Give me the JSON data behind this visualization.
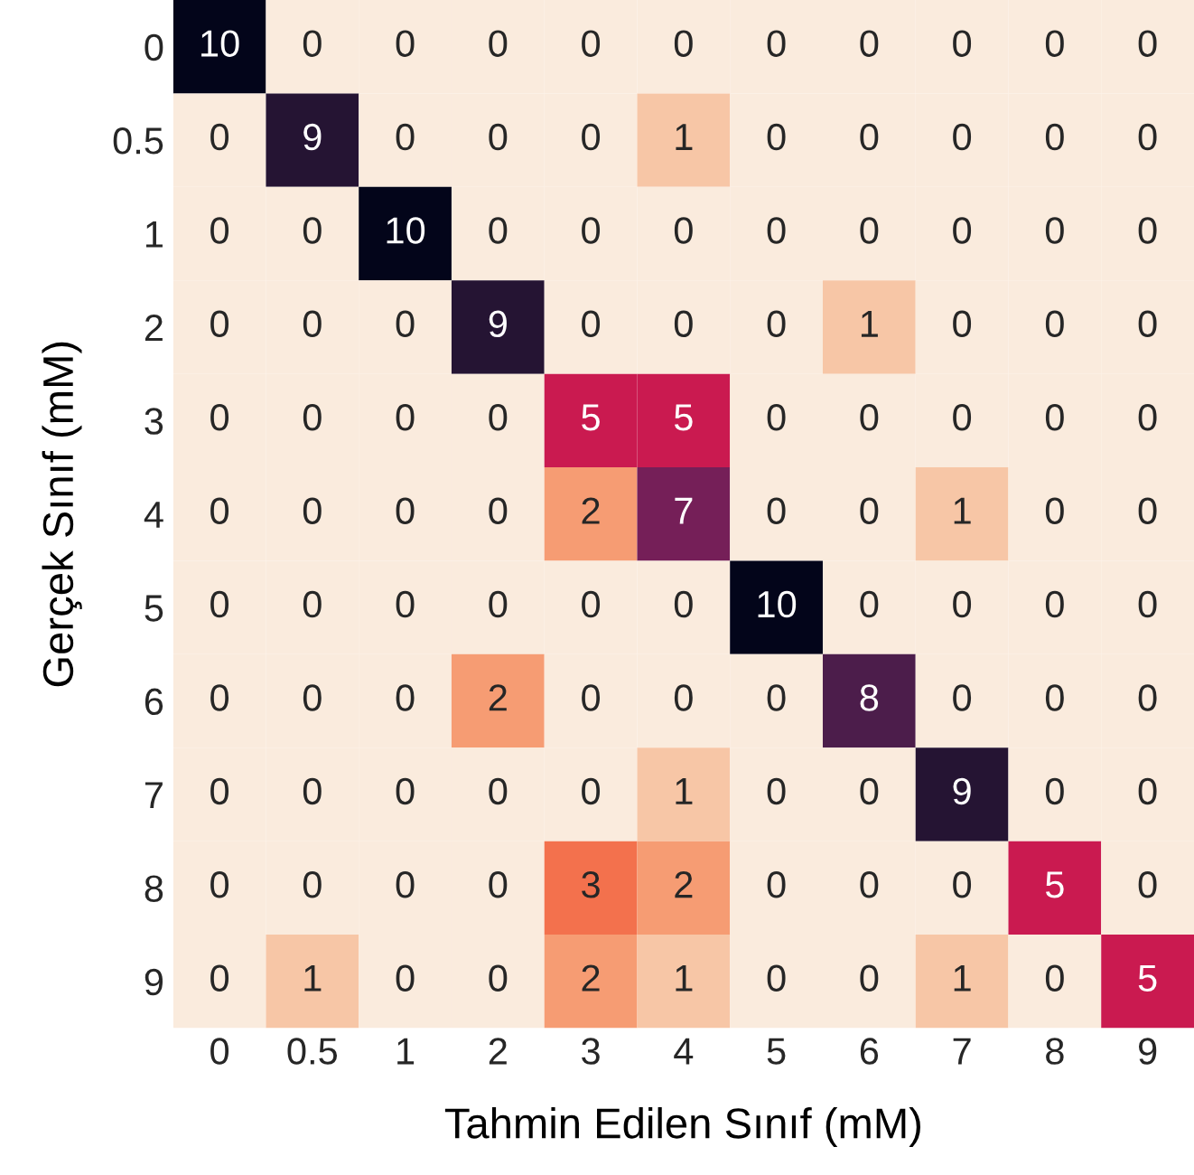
{
  "chart_data": {
    "type": "heatmap",
    "xlabel": "Tahmin Edilen Sınıf (mM)",
    "ylabel": "Gerçek Sınıf (mM)",
    "categories": [
      "0",
      "0.5",
      "1",
      "2",
      "3",
      "4",
      "5",
      "6",
      "7",
      "8",
      "9"
    ],
    "y_categories": [
      "0",
      "0.5",
      "1",
      "2",
      "3",
      "4",
      "5",
      "6",
      "7",
      "8",
      "9"
    ],
    "cells": [
      [
        10,
        0,
        0,
        0,
        0,
        0,
        0,
        0,
        0,
        0,
        0
      ],
      [
        0,
        9,
        0,
        0,
        0,
        1,
        0,
        0,
        0,
        0,
        0
      ],
      [
        0,
        0,
        10,
        0,
        0,
        0,
        0,
        0,
        0,
        0,
        0
      ],
      [
        0,
        0,
        0,
        9,
        0,
        0,
        0,
        1,
        0,
        0,
        0
      ],
      [
        0,
        0,
        0,
        0,
        5,
        5,
        0,
        0,
        0,
        0,
        0
      ],
      [
        0,
        0,
        0,
        0,
        2,
        7,
        0,
        0,
        1,
        0,
        0
      ],
      [
        0,
        0,
        0,
        0,
        0,
        0,
        10,
        0,
        0,
        0,
        0
      ],
      [
        0,
        0,
        0,
        2,
        0,
        0,
        0,
        8,
        0,
        0,
        0
      ],
      [
        0,
        0,
        0,
        0,
        0,
        1,
        0,
        0,
        9,
        0,
        0
      ],
      [
        0,
        0,
        0,
        0,
        3,
        2,
        0,
        0,
        0,
        5,
        0
      ],
      [
        0,
        1,
        0,
        0,
        2,
        1,
        0,
        0,
        1,
        0,
        5
      ]
    ],
    "data_labels": true
  }
}
